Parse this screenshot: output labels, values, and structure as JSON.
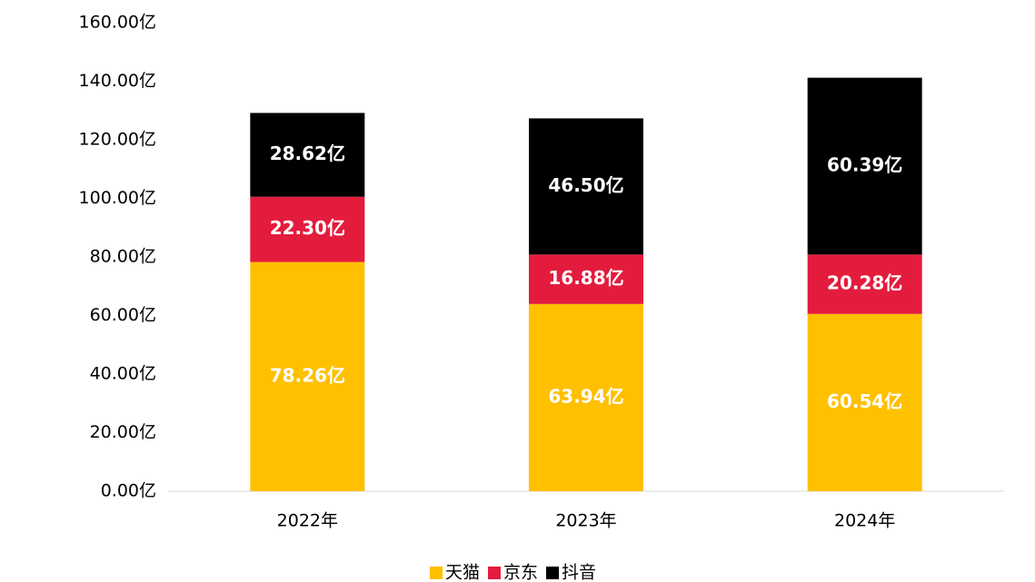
{
  "chart_data": {
    "type": "stacked_bar",
    "categories": [
      "2022年",
      "2023年",
      "2024年"
    ],
    "series": [
      {
        "name": "天猫",
        "color": "#ffc000",
        "values": [
          78.26,
          63.94,
          60.54
        ],
        "value_labels": [
          "78.26亿",
          "63.94亿",
          "60.54亿"
        ]
      },
      {
        "name": "京东",
        "color": "#e31c3d",
        "values": [
          22.3,
          16.88,
          20.28
        ],
        "value_labels": [
          "22.30亿",
          "16.88亿",
          "20.28亿"
        ]
      },
      {
        "name": "抖音",
        "color": "#000000",
        "values": [
          28.62,
          46.5,
          60.39
        ],
        "value_labels": [
          "28.62亿",
          "46.50亿",
          "60.39亿"
        ]
      }
    ],
    "ylim": [
      0,
      160
    ],
    "yticks": [
      {
        "value": 0,
        "label": "0.00亿"
      },
      {
        "value": 20,
        "label": "20.00亿"
      },
      {
        "value": 40,
        "label": "40.00亿"
      },
      {
        "value": 60,
        "label": "60.00亿"
      },
      {
        "value": 80,
        "label": "80.00亿"
      },
      {
        "value": 100,
        "label": "100.00亿"
      },
      {
        "value": 120,
        "label": "120.00亿"
      },
      {
        "value": 140,
        "label": "140.00亿"
      },
      {
        "value": 160,
        "label": "160.00亿"
      }
    ],
    "legend": "bottom"
  }
}
